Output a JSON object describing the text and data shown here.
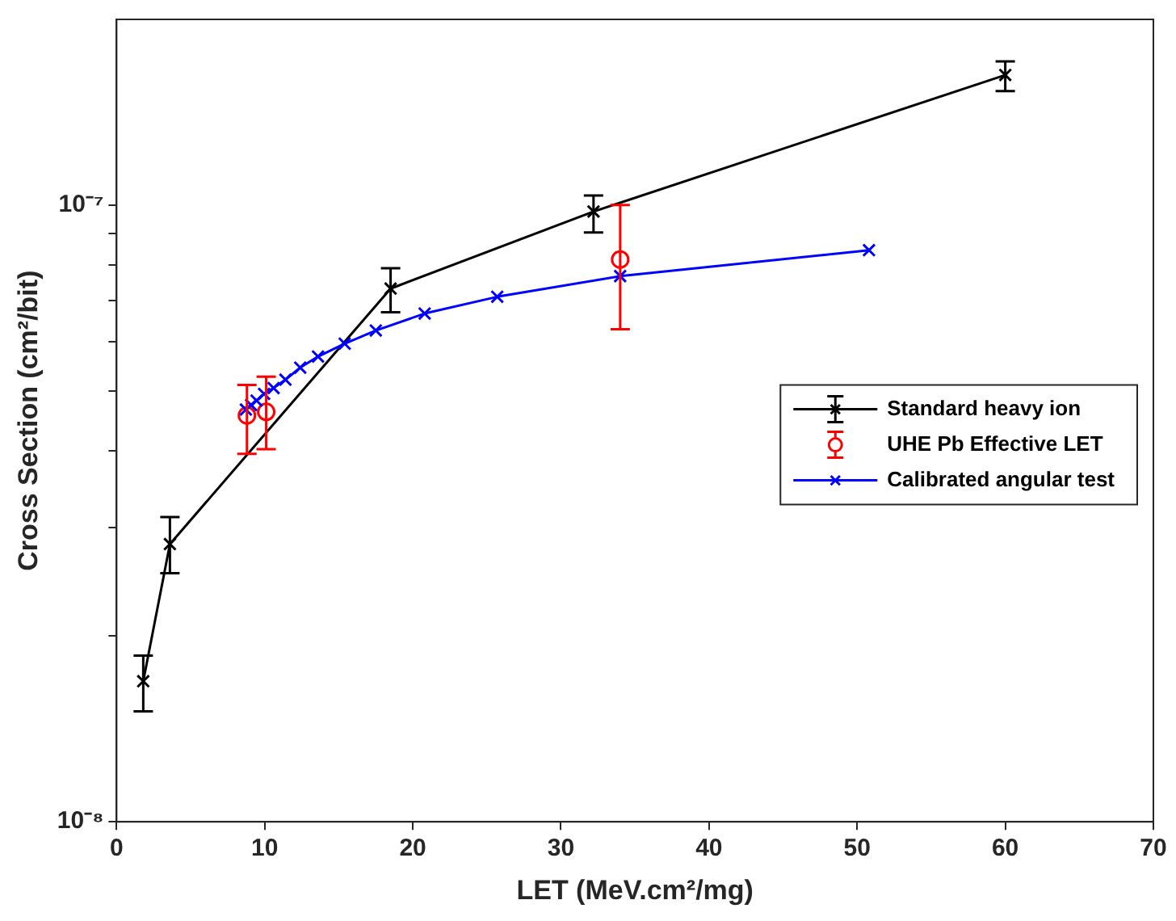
{
  "chart_data": {
    "type": "line",
    "xlabel": "LET (MeV.cm²/mg)",
    "ylabel": "Cross Section (cm²/bit)",
    "log": "y",
    "xlim": [
      0,
      70
    ],
    "xticks": [
      0,
      10,
      20,
      30,
      40,
      50,
      60,
      70
    ],
    "ylim": [
      1e-08,
      2e-07
    ],
    "yticks": [
      {
        "value": 1e-08,
        "label": "10⁻⁸"
      },
      {
        "value": 2e-08,
        "label": null
      },
      {
        "value": 3e-08,
        "label": null
      },
      {
        "value": 4e-08,
        "label": null
      },
      {
        "value": 5e-08,
        "label": null
      },
      {
        "value": 6e-08,
        "label": null
      },
      {
        "value": 7e-08,
        "label": null
      },
      {
        "value": 8e-08,
        "label": null
      },
      {
        "value": 9e-08,
        "label": null
      },
      {
        "value": 1e-07,
        "label": "10⁻⁷"
      }
    ],
    "grid": false,
    "legend": "right",
    "line_style": "solid",
    "series": [
      {
        "name": "Standard heavy ion",
        "type": "line",
        "marker": "cross",
        "color": "#000000",
        "x": [
          1.8,
          3.6,
          18.5,
          32.2,
          60
        ],
        "values": [
          1.69e-08,
          2.82e-08,
          7.32e-08,
          9.76e-08,
          1.625e-07
        ],
        "errors": [
          [
            1.51e-08,
            1.86e-08
          ],
          [
            2.53e-08,
            3.12e-08
          ],
          [
            6.7e-08,
            7.9e-08
          ],
          [
            9.03e-08,
            1.036e-07
          ],
          [
            1.53e-07,
            1.71e-07
          ]
        ]
      },
      {
        "name": "UHE Pb Effective LET",
        "type": "scatter",
        "marker": "circle",
        "color": "#ff0000",
        "x": [
          8.8,
          10.1,
          34
        ],
        "values": [
          4.56e-08,
          4.62e-08,
          8.16e-08
        ],
        "errors": [
          [
            3.95e-08,
            5.11e-08
          ],
          [
            4.02e-08,
            5.27e-08
          ],
          [
            6.29e-08,
            1e-07
          ]
        ]
      },
      {
        "name": "Calibrated angular test",
        "type": "line",
        "marker": "cross",
        "color": "#0000ff",
        "x": [
          8.73,
          9.08,
          9.45,
          9.96,
          10.6,
          11.4,
          12.4,
          13.6,
          15.4,
          17.5,
          20.8,
          25.7,
          34.0,
          50.8
        ],
        "values": [
          4.66e-08,
          4.74e-08,
          4.82e-08,
          4.94e-08,
          5.05e-08,
          5.21e-08,
          5.45e-08,
          5.68e-08,
          5.96e-08,
          6.26e-08,
          6.67e-08,
          7.1e-08,
          7.67e-08,
          8.45e-08
        ]
      }
    ]
  }
}
